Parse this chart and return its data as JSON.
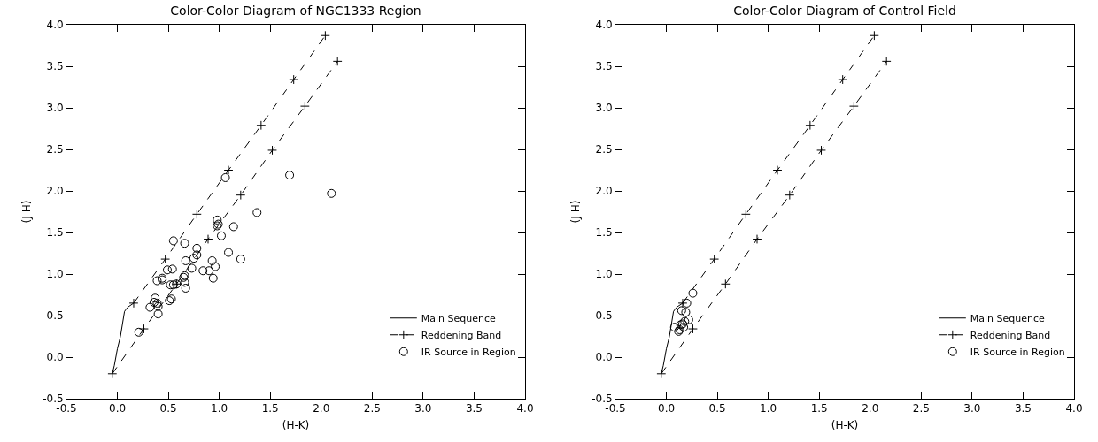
{
  "chart_data": [
    {
      "type": "scatter",
      "title": "Color-Color Diagram of NGC1333 Region",
      "xlabel": "(H-K)",
      "ylabel": "(J-H)",
      "xlim": [
        -0.5,
        4
      ],
      "ylim": [
        -0.5,
        4
      ],
      "xticks": [
        -0.5,
        {
          "value": 0,
          "label": "0.0"
        },
        0.5,
        {
          "value": 1,
          "label": "1.0"
        },
        1.5,
        {
          "value": 2,
          "label": "2.0"
        },
        2.5,
        {
          "value": 3,
          "label": "3.0"
        },
        3.5,
        {
          "value": 4,
          "label": "4.0"
        }
      ],
      "yticks": [
        -0.5,
        {
          "value": 0,
          "label": "0.0"
        },
        0.5,
        {
          "value": 1,
          "label": "1.0"
        },
        1.5,
        {
          "value": 2,
          "label": "2.0"
        },
        2.5,
        {
          "value": 3,
          "label": "3.0"
        },
        3.5,
        {
          "value": 4,
          "label": "4.0"
        }
      ],
      "grid": false,
      "legend": "bottom right",
      "series": [
        {
          "name": "Main Sequence",
          "type": "line",
          "color": "#000000",
          "line_style": "solid",
          "marker": "none",
          "x": [
            -0.05,
            -0.03,
            0.0,
            0.03,
            0.05,
            0.07,
            0.1,
            0.16
          ],
          "values": [
            -0.2,
            -0.1,
            0.1,
            0.25,
            0.4,
            0.55,
            0.6,
            0.65
          ]
        },
        {
          "name": "Reddening Band",
          "type": "line",
          "color": "#000000",
          "line_style": "dashed",
          "marker": "cross",
          "x": [
            -0.05,
            0.26,
            0.58,
            0.89,
            1.21,
            1.52,
            1.84,
            2.16,
            null,
            0.16,
            0.47,
            0.78,
            1.09,
            1.41,
            1.73,
            2.04
          ],
          "values": [
            -0.2,
            0.34,
            0.88,
            1.42,
            1.95,
            2.49,
            3.02,
            3.56,
            null,
            0.65,
            1.18,
            1.72,
            2.25,
            2.79,
            3.34,
            3.87
          ]
        },
        {
          "name": "IR Source in Region",
          "type": "scatter",
          "color": "#000000",
          "marker": "circle",
          "x": [
            1.69,
            1.37,
            1.14,
            0.98,
            0.99,
            0.98,
            1.02,
            1.09,
            1.21,
            1.06,
            0.55,
            0.66,
            0.78,
            0.78,
            0.75,
            0.67,
            0.73,
            0.93,
            0.96,
            0.9,
            0.84,
            0.94,
            0.49,
            0.54,
            0.44,
            0.44,
            0.39,
            0.66,
            0.65,
            0.66,
            0.67,
            0.52,
            0.55,
            0.58,
            0.53,
            0.51,
            0.37,
            0.36,
            0.39,
            0.4,
            0.32,
            0.4,
            0.21,
            2.1
          ],
          "values": [
            2.19,
            1.74,
            1.57,
            1.65,
            1.6,
            1.58,
            1.46,
            1.26,
            1.18,
            2.16,
            1.4,
            1.37,
            1.31,
            1.23,
            1.19,
            1.16,
            1.07,
            1.16,
            1.09,
            1.04,
            1.04,
            0.95,
            1.05,
            1.06,
            0.95,
            0.93,
            0.92,
            0.98,
            0.96,
            0.9,
            0.83,
            0.87,
            0.87,
            0.88,
            0.7,
            0.68,
            0.71,
            0.66,
            0.65,
            0.61,
            0.6,
            0.52,
            0.3,
            1.97
          ]
        }
      ]
    },
    {
      "type": "scatter",
      "title": "Color-Color Diagram of Control Field",
      "xlabel": "(H-K)",
      "ylabel": "(J-H)",
      "xlim": [
        -0.5,
        4
      ],
      "ylim": [
        -0.5,
        4
      ],
      "xticks": [
        -0.5,
        {
          "value": 0,
          "label": "0.0"
        },
        0.5,
        {
          "value": 1,
          "label": "1.0"
        },
        1.5,
        {
          "value": 2,
          "label": "2.0"
        },
        2.5,
        {
          "value": 3,
          "label": "3.0"
        },
        3.5,
        {
          "value": 4,
          "label": "4.0"
        }
      ],
      "yticks": [
        -0.5,
        {
          "value": 0,
          "label": "0.0"
        },
        0.5,
        {
          "value": 1,
          "label": "1.0"
        },
        1.5,
        {
          "value": 2,
          "label": "2.0"
        },
        2.5,
        {
          "value": 3,
          "label": "3.0"
        },
        3.5,
        {
          "value": 4,
          "label": "4.0"
        }
      ],
      "grid": false,
      "legend": "bottom right",
      "series": [
        {
          "name": "Main Sequence",
          "type": "line",
          "color": "#000000",
          "line_style": "solid",
          "marker": "none",
          "x": [
            -0.05,
            -0.03,
            0.0,
            0.03,
            0.05,
            0.07,
            0.1,
            0.16
          ],
          "values": [
            -0.2,
            -0.1,
            0.1,
            0.25,
            0.4,
            0.55,
            0.6,
            0.65
          ]
        },
        {
          "name": "Reddening Band",
          "type": "line",
          "color": "#000000",
          "line_style": "dashed",
          "marker": "cross",
          "x": [
            -0.05,
            0.26,
            0.58,
            0.89,
            1.21,
            1.52,
            1.84,
            2.16,
            null,
            0.16,
            0.47,
            0.78,
            1.09,
            1.41,
            1.73,
            2.04
          ],
          "values": [
            -0.2,
            0.34,
            0.88,
            1.42,
            1.95,
            2.49,
            3.02,
            3.56,
            null,
            0.65,
            1.18,
            1.72,
            2.25,
            2.79,
            3.34,
            3.87
          ]
        },
        {
          "name": "IR Source in Region",
          "type": "scatter",
          "color": "#000000",
          "marker": "circle",
          "x": [
            0.26,
            0.2,
            0.15,
            0.19,
            0.22,
            0.18,
            0.16,
            0.14,
            0.17,
            0.13,
            0.08,
            0.12
          ],
          "values": [
            0.77,
            0.65,
            0.56,
            0.54,
            0.45,
            0.43,
            0.4,
            0.39,
            0.36,
            0.33,
            0.36,
            0.31
          ]
        }
      ]
    }
  ]
}
